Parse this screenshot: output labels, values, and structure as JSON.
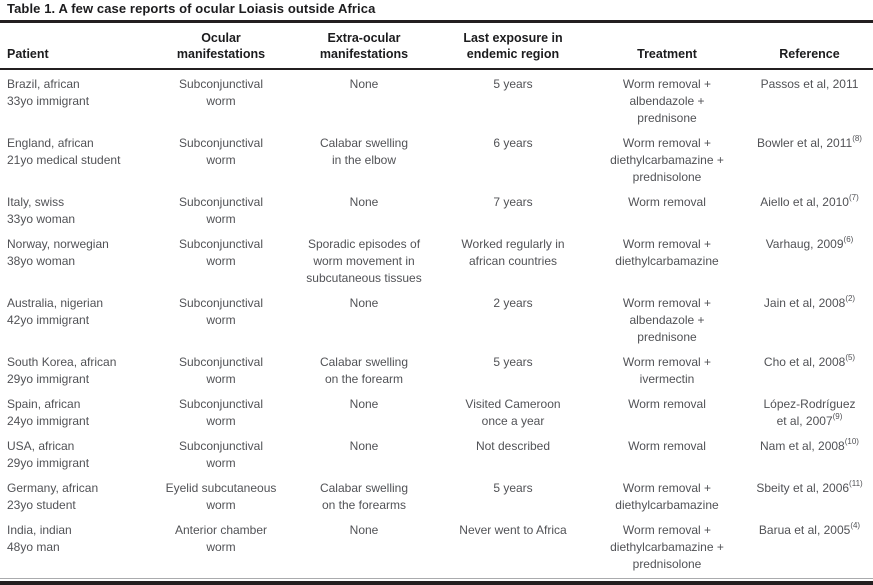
{
  "title": "Table 1. A few case reports of ocular Loiasis outside Africa",
  "columns": [
    {
      "key": "patient",
      "label": "Patient"
    },
    {
      "key": "ocular",
      "label": "Ocular\nmanifestations"
    },
    {
      "key": "extra_ocular",
      "label": "Extra-ocular\nmanifestations"
    },
    {
      "key": "last_exposure",
      "label": "Last exposure in\nendemic region"
    },
    {
      "key": "treatment",
      "label": "Treatment"
    },
    {
      "key": "reference",
      "label": "Reference"
    }
  ],
  "rows": [
    {
      "patient": "Brazil, african\n33yo immigrant",
      "ocular": "Subconjunctival\nworm",
      "extra_ocular": "None",
      "last_exposure": "5 years",
      "treatment": "Worm removal +\nalbendazole +\nprednisone",
      "reference": "Passos et al, 2011",
      "reference_sup": ""
    },
    {
      "patient": "England, african\n21yo medical student",
      "ocular": "Subconjunctival\nworm",
      "extra_ocular": "Calabar swelling\nin the elbow",
      "last_exposure": "6 years",
      "treatment": "Worm removal +\ndiethylcarbamazine +\nprednisolone",
      "reference": "Bowler et al, 2011",
      "reference_sup": "(8)"
    },
    {
      "patient": "Italy, swiss\n33yo woman",
      "ocular": "Subconjunctival\nworm",
      "extra_ocular": "None",
      "last_exposure": "7 years",
      "treatment": "Worm removal",
      "reference": "Aiello et al, 2010",
      "reference_sup": "(7)"
    },
    {
      "patient": "Norway, norwegian\n38yo woman",
      "ocular": "Subconjunctival\nworm",
      "extra_ocular": "Sporadic episodes of\nworm movement in\nsubcutaneous tissues",
      "last_exposure": "Worked regularly in\nafrican countries",
      "treatment": "Worm removal +\ndiethylcarbamazine",
      "reference": "Varhaug, 2009",
      "reference_sup": "(6)"
    },
    {
      "patient": "Australia, nigerian\n42yo immigrant",
      "ocular": "Subconjunctival\nworm",
      "extra_ocular": "None",
      "last_exposure": "2 years",
      "treatment": "Worm removal +\nalbendazole +\nprednisone",
      "reference": "Jain et al, 2008",
      "reference_sup": "(2)"
    },
    {
      "patient": "South Korea, african\n29yo immigrant",
      "ocular": "Subconjunctival\nworm",
      "extra_ocular": "Calabar swelling\non the forearm",
      "last_exposure": "5 years",
      "treatment": "Worm removal +\nivermectin",
      "reference": "Cho et al, 2008",
      "reference_sup": "(5)"
    },
    {
      "patient": "Spain, african\n24yo immigrant",
      "ocular": "Subconjunctival\nworm",
      "extra_ocular": "None",
      "last_exposure": "Visited Cameroon\nonce a year",
      "treatment": "Worm removal",
      "reference": "López-Rodríguez\net al, 2007",
      "reference_sup": "(9)"
    },
    {
      "patient": "USA, african\n29yo immigrant",
      "ocular": "Subconjunctival\nworm",
      "extra_ocular": "None",
      "last_exposure": "Not described",
      "treatment": "Worm removal",
      "reference": "Nam et al, 2008",
      "reference_sup": "(10)"
    },
    {
      "patient": "Germany, african\n23yo student",
      "ocular": "Eyelid subcutaneous\nworm",
      "extra_ocular": "Calabar swelling\non the forearms",
      "last_exposure": "5 years",
      "treatment": "Worm removal +\ndiethylcarbamazine",
      "reference": "Sbeity et al, 2006",
      "reference_sup": "(11)"
    },
    {
      "patient": "India, indian\n48yo man",
      "ocular": "Anterior chamber\nworm",
      "extra_ocular": "None",
      "last_exposure": "Never went to Africa",
      "treatment": "Worm removal +\ndiethylcarbamazine +\nprednisolone",
      "reference": "Barua et al, 2005",
      "reference_sup": "(4)"
    }
  ],
  "colors": {
    "heading_text": "#1c1c1e",
    "body_text": "#515256",
    "rule": "#231f20"
  }
}
